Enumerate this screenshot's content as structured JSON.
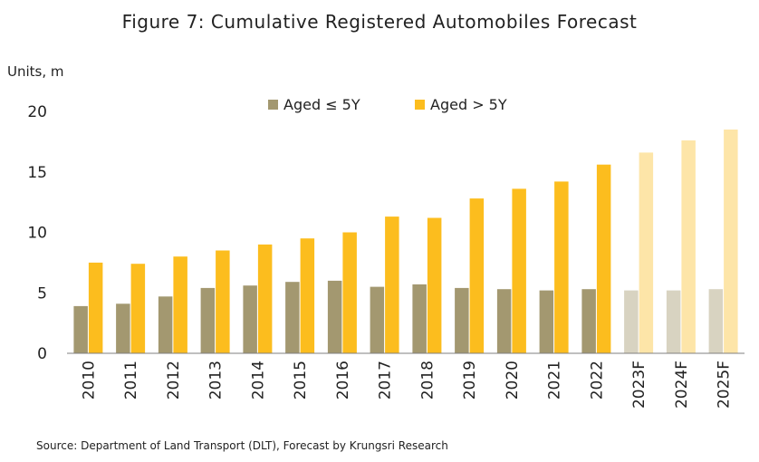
{
  "title": "Figure 7: Cumulative Registered Automobiles Forecast",
  "source": "Source: Department of Land Transport (DLT), Forecast by Krungsri Research",
  "colors": {
    "aged_le5": "#a39870",
    "aged_gt5": "#fcbd1e",
    "aged_le5_forecast": "#d8d3c1",
    "aged_gt5_forecast": "#fde5a8",
    "axis": "#7f7f7f"
  },
  "chart_data": {
    "type": "bar",
    "ylabel": "Units, m",
    "ylim": [
      0,
      20
    ],
    "yticks": [
      0,
      5,
      10,
      15,
      20
    ],
    "legend_position": "top-center",
    "grid": false,
    "categories": [
      "2010",
      "2011",
      "2012",
      "2013",
      "2014",
      "2015",
      "2016",
      "2017",
      "2018",
      "2019",
      "2020",
      "2021",
      "2022",
      "2023F",
      "2024F",
      "2025F"
    ],
    "forecast_from_index": 13,
    "series": [
      {
        "name": "Aged ≤  5Y",
        "color_key": "aged_le5",
        "values": [
          3.9,
          4.1,
          4.7,
          5.4,
          5.6,
          5.9,
          6.0,
          5.5,
          5.7,
          5.4,
          5.3,
          5.2,
          5.3,
          5.2,
          5.2,
          5.3
        ]
      },
      {
        "name": "Aged > 5Y",
        "color_key": "aged_gt5",
        "values": [
          7.5,
          7.4,
          8.0,
          8.5,
          9.0,
          9.5,
          10.0,
          11.3,
          11.2,
          12.8,
          13.6,
          14.2,
          15.6,
          16.6,
          17.6,
          18.5
        ]
      }
    ]
  }
}
